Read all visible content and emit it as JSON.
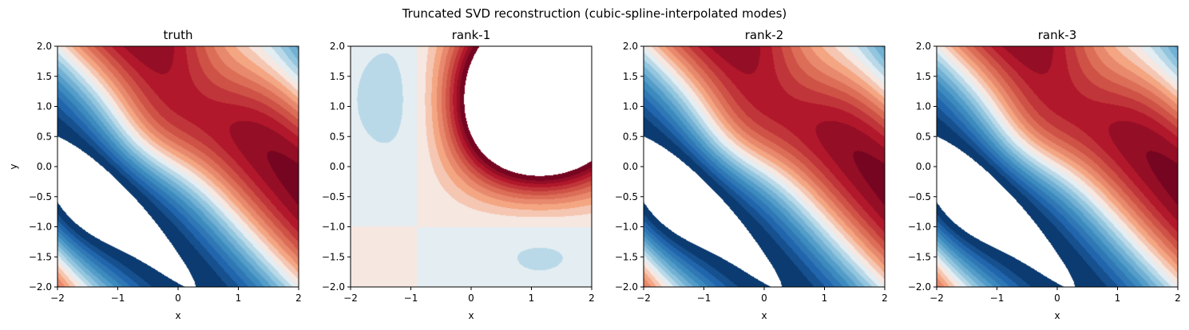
{
  "figure": {
    "suptitle": "Truncated SVD reconstruction (cubic-spline-interpolated modes)"
  },
  "chart_data": [
    {
      "type": "heatmap",
      "title": "truth",
      "xlabel": "x",
      "ylabel": "y",
      "xlim": [
        -2,
        2
      ],
      "ylim": [
        -2,
        2
      ],
      "xticks": [
        -2,
        -1,
        0,
        1,
        2
      ],
      "yticks": [
        -2.0,
        -1.5,
        -1.0,
        -0.5,
        0.0,
        0.5,
        1.0,
        1.5,
        2.0
      ],
      "x_tick_labels": [
        "−2",
        "−1",
        "0",
        "1",
        "2"
      ],
      "y_tick_labels": [
        "−2.0",
        "−1.5",
        "−1.0",
        "−0.5",
        "0.0",
        "0.5",
        "1.0",
        "1.5",
        "2.0"
      ],
      "colormap": "RdBu_r",
      "levels": 20,
      "value_range": [
        -1.0,
        1.0
      ],
      "field": "diagonal bands along x+y, red band (max) upper-right, blue troughs lower-left"
    },
    {
      "type": "heatmap",
      "title": "rank-1",
      "xlabel": "x",
      "ylabel": "",
      "xlim": [
        -2,
        2
      ],
      "ylim": [
        -2,
        2
      ],
      "xticks": [
        -2,
        -1,
        0,
        1,
        2
      ],
      "yticks": [
        -2.0,
        -1.5,
        -1.0,
        -0.5,
        0.0,
        0.5,
        1.0,
        1.5,
        2.0
      ],
      "x_tick_labels": [
        "−2",
        "−1",
        "0",
        "1",
        "2"
      ],
      "y_tick_labels": [
        "−2.0",
        "−1.5",
        "−1.0",
        "−0.5",
        "0.0",
        "0.5",
        "1.0",
        "1.5",
        "2.0"
      ],
      "colormap": "RdBu_r",
      "levels": 20,
      "value_range": [
        -1.0,
        1.0
      ],
      "field": "separable product, peak near (0.6, 0.6) exceeding color range (white), sign change at x≈-0.9 and y≈-1.0"
    },
    {
      "type": "heatmap",
      "title": "rank-2",
      "xlabel": "x",
      "ylabel": "",
      "xlim": [
        -2,
        2
      ],
      "ylim": [
        -2,
        2
      ],
      "xticks": [
        -2,
        -1,
        0,
        1,
        2
      ],
      "yticks": [
        -2.0,
        -1.5,
        -1.0,
        -0.5,
        0.0,
        0.5,
        1.0,
        1.5,
        2.0
      ],
      "x_tick_labels": [
        "−2",
        "−1",
        "0",
        "1",
        "2"
      ],
      "y_tick_labels": [
        "−2.0",
        "−1.5",
        "−1.0",
        "−0.5",
        "0.0",
        "0.5",
        "1.0",
        "1.5",
        "2.0"
      ],
      "colormap": "RdBu_r",
      "levels": 20,
      "value_range": [
        -1.0,
        1.0
      ],
      "field": "nearly identical to truth"
    },
    {
      "type": "heatmap",
      "title": "rank-3",
      "xlabel": "x",
      "ylabel": "",
      "xlim": [
        -2,
        2
      ],
      "ylim": [
        -2,
        2
      ],
      "xticks": [
        -2,
        -1,
        0,
        1,
        2
      ],
      "yticks": [
        -2.0,
        -1.5,
        -1.0,
        -0.5,
        0.0,
        0.5,
        1.0,
        1.5,
        2.0
      ],
      "x_tick_labels": [
        "−2",
        "−1",
        "0",
        "1",
        "2"
      ],
      "y_tick_labels": [
        "−2.0",
        "−1.5",
        "−1.0",
        "−0.5",
        "0.0",
        "0.5",
        "1.0",
        "1.5",
        "2.0"
      ],
      "colormap": "RdBu_r",
      "levels": 20,
      "value_range": [
        -1.0,
        1.0
      ],
      "field": "identical to truth"
    }
  ]
}
